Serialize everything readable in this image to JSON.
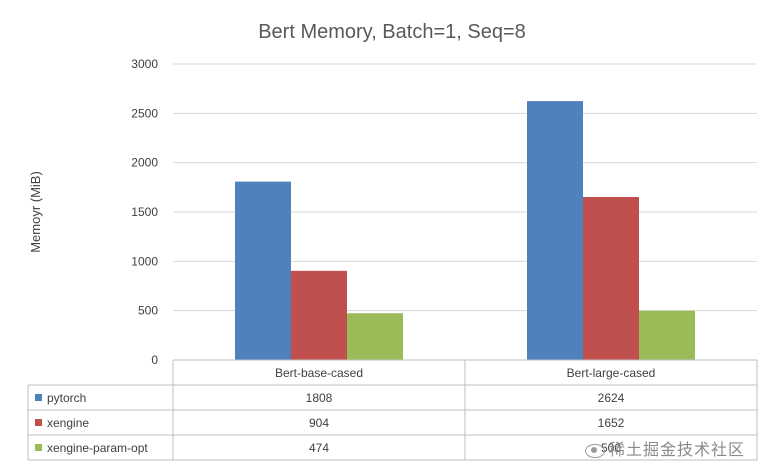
{
  "chart_data": {
    "type": "bar",
    "title": "Bert Memory, Batch=1, Seq=8",
    "ylabel": "Memoyr (MiB)",
    "xlabel": "",
    "categories": [
      "Bert-base-cased",
      "Bert-large-cased"
    ],
    "ylim": [
      0,
      3000
    ],
    "yticks": [
      0,
      500,
      1000,
      1500,
      2000,
      2500,
      3000
    ],
    "grid": true,
    "legend": "data-table",
    "series": [
      {
        "name": "pytorch",
        "values": [
          1808,
          2624
        ],
        "color": "#4F81BD",
        "labels": [
          "1808",
          "2624"
        ]
      },
      {
        "name": "xengine",
        "values": [
          904,
          1652
        ],
        "color": "#C0504D",
        "labels": [
          "904",
          "1652"
        ]
      },
      {
        "name": "xengine-param-opt",
        "values": [
          474,
          500
        ],
        "color": "#9BBB59",
        "labels": [
          "474",
          "500"
        ]
      }
    ]
  },
  "watermark": {
    "text": "稀土掘金技术社区",
    "icon": "eye-icon"
  }
}
